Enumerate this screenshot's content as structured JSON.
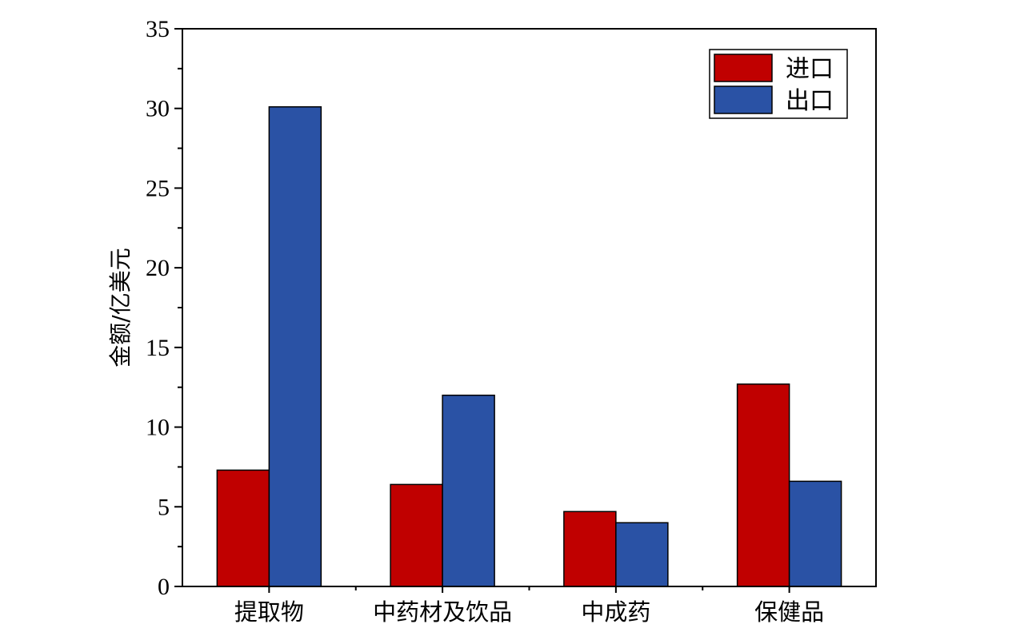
{
  "chart_data": {
    "type": "bar",
    "ylabel": "金额/亿美元",
    "categories": [
      "提取物",
      "中药材及饮品",
      "中成药",
      "保健品"
    ],
    "series": [
      {
        "name": "进口",
        "color": "#c00000",
        "values": [
          7.3,
          6.4,
          4.7,
          12.7
        ]
      },
      {
        "name": "出口",
        "color": "#2a52a5",
        "values": [
          30.1,
          12.0,
          4.0,
          6.6
        ]
      }
    ],
    "ylim": [
      0,
      35
    ],
    "yticks": [
      "0",
      "5",
      "10",
      "15",
      "20",
      "25",
      "30",
      "35"
    ],
    "grid": false,
    "legend": "top-right"
  }
}
